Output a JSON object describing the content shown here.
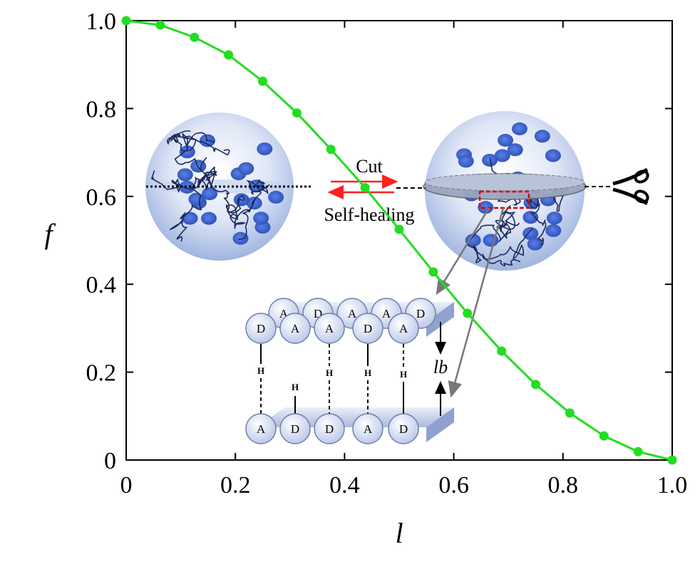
{
  "chart_data": {
    "type": "line",
    "xlabel": "l",
    "ylabel": "f",
    "xlim": [
      0,
      1.0
    ],
    "ylim": [
      0,
      1.0
    ],
    "xticks": [
      "0",
      "0.2",
      "0.4",
      "0.6",
      "0.8",
      "1.0"
    ],
    "yticks": [
      "0",
      "0.2",
      "0.4",
      "0.6",
      "0.8",
      "1.0"
    ],
    "grid": false,
    "series": [
      {
        "color": "#22dd22",
        "x": [
          0.0,
          0.0625,
          0.125,
          0.1875,
          0.25,
          0.3125,
          0.375,
          0.4375,
          0.5,
          0.5625,
          0.625,
          0.6875,
          0.75,
          0.8125,
          0.875,
          0.9375,
          1.0
        ],
        "y": [
          1.0,
          0.99,
          0.962,
          0.922,
          0.862,
          0.79,
          0.707,
          0.62,
          0.525,
          0.428,
          0.334,
          0.248,
          0.172,
          0.107,
          0.055,
          0.019,
          0.0
        ]
      }
    ]
  },
  "annotations": {
    "cut_label": "Cut",
    "heal_label": "Self-healing",
    "gap_label": "lb",
    "top_row_back": [
      "A",
      "D",
      "A",
      "A",
      "D"
    ],
    "top_row_front": [
      "D",
      "A",
      "A",
      "D",
      "A"
    ],
    "bottom_row": [
      "A",
      "D",
      "D",
      "A",
      "D"
    ],
    "bond_letter": "H"
  },
  "colors": {
    "curve": "#22dd22",
    "arrow_red": "#ff2020",
    "sphere_blue": "#3a5fcf"
  }
}
